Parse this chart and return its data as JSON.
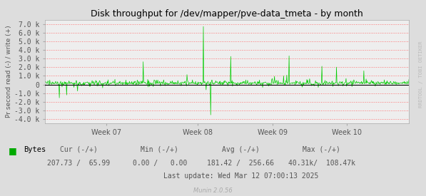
{
  "title": "Disk throughput for /dev/mapper/pve-data_tmeta - by month",
  "ylabel": "Pr second read (-) / write (+)",
  "yticks": [
    -4000,
    -3000,
    -2000,
    -1000,
    0,
    1000,
    2000,
    3000,
    4000,
    5000,
    6000,
    7000
  ],
  "ytick_labels": [
    "-4.0 k",
    "-3.0 k",
    "-2.0 k",
    "-1.0 k",
    "0",
    "1.0 k",
    "2.0 k",
    "3.0 k",
    "4.0 k",
    "5.0 k",
    "6.0 k",
    "7.0 k"
  ],
  "ylim": [
    -4500,
    7500
  ],
  "xtick_positions": [
    0.17,
    0.42,
    0.625,
    0.83
  ],
  "xtick_labels": [
    "Week 07",
    "Week 08",
    "Week 09",
    "Week 10"
  ],
  "line_color": "#00CC00",
  "zero_line_color": "#000000",
  "bg_color": "#DDDDDD",
  "plot_bg_color": "#EEEEEE",
  "grid_color": "#FF6666",
  "grid_linestyle": ":",
  "legend_label": "Bytes",
  "legend_color": "#00AA00",
  "footer_cols": [
    "Cur (-/+)",
    "Min (-/+)",
    "Avg (-/+)",
    "Max (-/+)"
  ],
  "footer_vals": [
    "207.73 /  65.99",
    "0.00 /   0.00",
    "181.42 /  256.66",
    "40.31k/  108.47k"
  ],
  "footer_lastupdate": "Last update: Wed Mar 12 07:00:13 2025",
  "munin_version": "Munin 2.0.56",
  "rrdtool_label": "RRDTOOL / TOBI OETIKER",
  "num_points": 800
}
